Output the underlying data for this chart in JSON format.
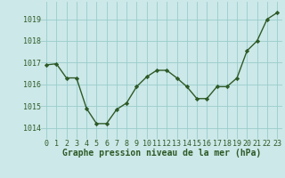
{
  "x": [
    0,
    1,
    2,
    3,
    4,
    5,
    6,
    7,
    8,
    9,
    10,
    11,
    12,
    13,
    14,
    15,
    16,
    17,
    18,
    19,
    20,
    21,
    22,
    23
  ],
  "y": [
    1016.9,
    1016.95,
    1016.3,
    1016.3,
    1014.9,
    1014.2,
    1014.2,
    1014.85,
    1015.15,
    1015.9,
    1016.35,
    1016.65,
    1016.65,
    1016.3,
    1015.9,
    1015.35,
    1015.35,
    1015.9,
    1015.9,
    1016.3,
    1017.55,
    1018.0,
    1019.0,
    1019.3
  ],
  "line_color": "#2d5a27",
  "marker": "D",
  "marker_size": 2.2,
  "linewidth": 1.0,
  "bg_color": "#cce8e8",
  "grid_color": "#99cccc",
  "xlabel": "Graphe pression niveau de la mer (hPa)",
  "xlabel_color": "#2d5a27",
  "tick_color": "#2d5a27",
  "ylim": [
    1013.5,
    1019.8
  ],
  "yticks": [
    1014,
    1015,
    1016,
    1017,
    1018,
    1019
  ],
  "xticks": [
    0,
    1,
    2,
    3,
    4,
    5,
    6,
    7,
    8,
    9,
    10,
    11,
    12,
    13,
    14,
    15,
    16,
    17,
    18,
    19,
    20,
    21,
    22,
    23
  ],
  "xlabel_fontsize": 7.0,
  "tick_fontsize": 6.0
}
